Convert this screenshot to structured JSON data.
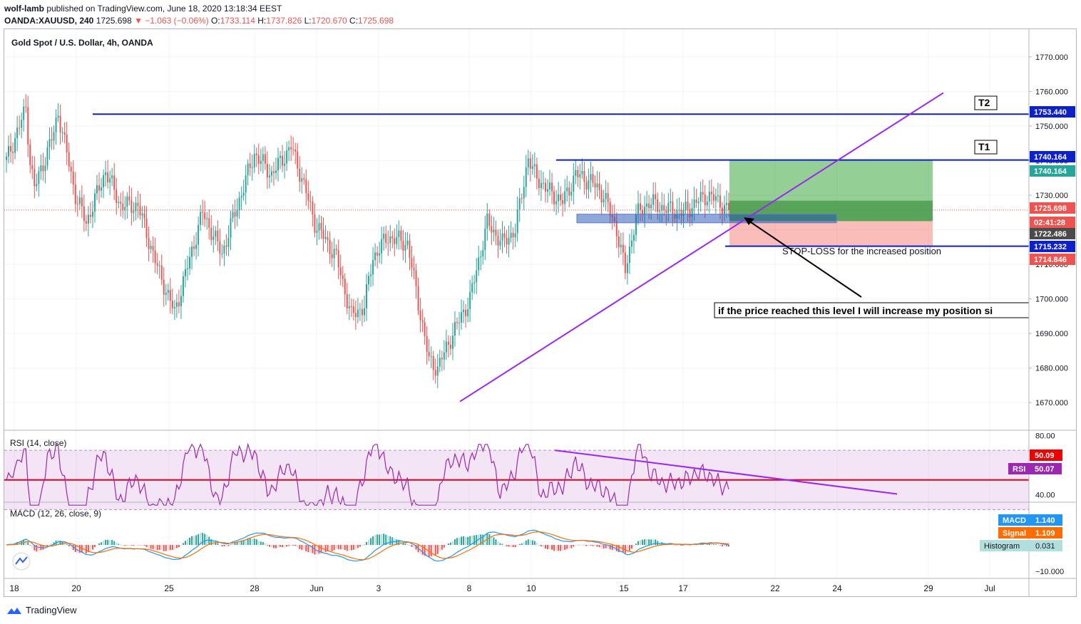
{
  "header": {
    "author": "wolf-lamb",
    "published": " published on TradingView.com, June 18, 2020 13:18:34 EEST",
    "symbol": "OANDA:XAUUSD, 240",
    "price": " 1725.698 ",
    "change": "▼ −1.063 (−0.06%)",
    "ohlc_o_label": " O:",
    "ohlc_o": "1733.114",
    "ohlc_h_label": " H:",
    "ohlc_h": "1737.826",
    "ohlc_l_label": " L:",
    "ohlc_l": "1720.670",
    "ohlc_c_label": " C:",
    "ohlc_c": "1725.698"
  },
  "colors": {
    "up": "#26a69a",
    "down": "#ef5350",
    "level_line": "#0d21c9",
    "trendline": "#9c27f0",
    "rsi_line": "#9c27b0",
    "macd_line": "#2196f3",
    "signal_line": "#ff6d00"
  },
  "chart_data": [
    {
      "type": "candlestick",
      "title": "Gold Spot / U.S. Dollar, 4h, OANDA",
      "ylim": [
        1662,
        1778
      ],
      "y_ticks": [
        "1770.000",
        "1760.000",
        "1750.000",
        "1740.000",
        "1730.000",
        "1720.000",
        "1710.000",
        "1700.000",
        "1690.000",
        "1680.000",
        "1670.000"
      ],
      "x_ticks": [
        "18",
        "20",
        "25",
        "28",
        "Jun",
        "3",
        "8",
        "10",
        "15",
        "17",
        "22",
        "24",
        "29",
        "Jul"
      ],
      "price_labels": [
        {
          "text": "1753.440",
          "color": "#0d21c9"
        },
        {
          "text": "1740.164",
          "color": "#0d21c9"
        },
        {
          "text": "1740.164",
          "color": "#26a69a"
        },
        {
          "text": "1725.698",
          "color": "#ef5350"
        },
        {
          "text": "02:41:28",
          "color": "#ef5350"
        },
        {
          "text": "1722.486",
          "color": "#4a4a4a"
        },
        {
          "text": "1715.232",
          "color": "#0d21c9"
        },
        {
          "text": "1714.846",
          "color": "#ef5350"
        }
      ],
      "annotations": {
        "t2": "T2",
        "t1": "T1",
        "stop_loss": "STOP-LOSS for the increased position",
        "note": "if the price reached this level I will increase my position si"
      },
      "levels": [
        1753.44,
        1740.164,
        1715.232
      ],
      "current_price": 1725.698
    },
    {
      "type": "line",
      "title": "RSI (14, close)",
      "ylim": [
        35,
        83
      ],
      "y_ticks": [
        "80.00",
        "40.00"
      ],
      "labels": [
        {
          "text": "50.09"
        },
        {
          "text": "RSI"
        },
        {
          "text": "50.07"
        }
      ]
    },
    {
      "type": "line",
      "title": "MACD (12, 26, close, 9)",
      "y_ticks": [
        "−10.000"
      ],
      "labels": [
        {
          "name": "MACD",
          "value": "1.140"
        },
        {
          "name": "Signal",
          "value": "1.109"
        },
        {
          "name": "Histogram",
          "value": "0.031"
        }
      ]
    }
  ],
  "footer": {
    "brand": "TradingView"
  }
}
